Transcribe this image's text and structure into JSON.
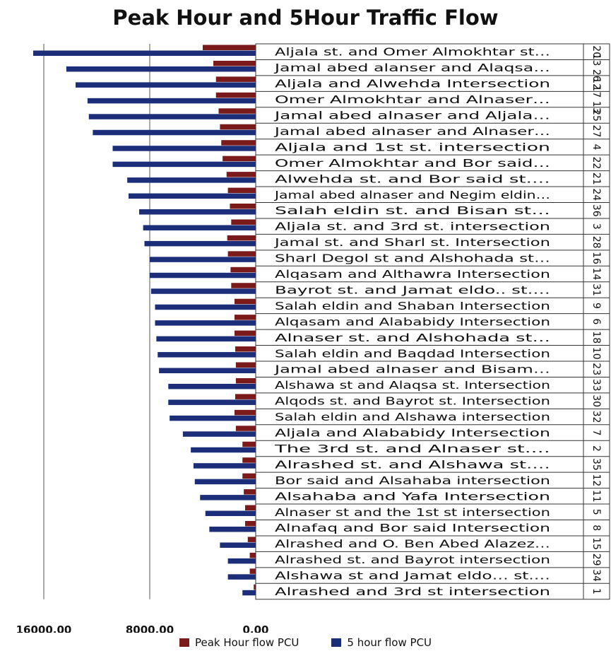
{
  "chart_data": {
    "type": "bar",
    "title": "Peak Hour and 5Hour Traffic Flow",
    "orientation": "horizontal",
    "x_axis_reversed": true,
    "xlim": [
      0,
      16800
    ],
    "x_ticks": [
      16000,
      8000,
      0
    ],
    "x_tick_labels": [
      "16000.00",
      "8000.00",
      "0.00"
    ],
    "grid": "vertical",
    "legend_position": "bottom",
    "series": [
      {
        "name": "Peak Hour flow  PCU",
        "color": "#7b1a1a",
        "values": [
          4000,
          3200,
          3000,
          3000,
          2800,
          2700,
          2600,
          2500,
          2200,
          2100,
          1950,
          1850,
          2150,
          2100,
          1900,
          1850,
          1600,
          1600,
          1600,
          1550,
          1500,
          1500,
          1550,
          1600,
          1500,
          1000,
          1000,
          1000,
          900,
          800,
          800,
          600,
          450,
          450,
          150
        ]
      },
      {
        "name": "5 hour flow PCU",
        "color": "#1c2e7a",
        "values": [
          16800,
          14300,
          13600,
          12700,
          12600,
          12300,
          10800,
          10800,
          9700,
          9600,
          8800,
          8500,
          8400,
          8000,
          8000,
          7900,
          7600,
          7600,
          7500,
          7400,
          7300,
          6600,
          6600,
          6500,
          5500,
          4900,
          4700,
          4600,
          4200,
          3800,
          3500,
          2700,
          2100,
          2100,
          1000
        ]
      }
    ],
    "rows": [
      {
        "label": "Aljala st. and Omer Almokhtar st…",
        "id": "20"
      },
      {
        "label": "Jamal abed alanser and Alaqsa…",
        "id": "13 26"
      },
      {
        "label": "Aljala and Alwehda Intersection",
        "id": "12"
      },
      {
        "label": "Omer Almokhtar and Alnaser…",
        "id": "17 13"
      },
      {
        "label": "Jamal abed alnaser and Aljala…",
        "id": "25"
      },
      {
        "label": "Jamal abed alnaser and Alnaser…",
        "id": "27"
      },
      {
        "label": "Aljala and 1st st. intersection",
        "id": "4"
      },
      {
        "label": "Omer Almokhtar and Bor said…",
        "id": "22"
      },
      {
        "label": "Alwehda st. and Bor said st.…",
        "id": "21"
      },
      {
        "label": "Jamal abed alnaser and Negim eldin…",
        "id": "24"
      },
      {
        "label": "Salah eldin st. and Bisan st…",
        "id": "36"
      },
      {
        "label": "Aljala st. and 3rd st. intersection",
        "id": "3"
      },
      {
        "label": "Jamal st. and Sharl st. Intersection",
        "id": "28"
      },
      {
        "label": "Sharl Degol st and Alshohada st…",
        "id": "16"
      },
      {
        "label": "Alqasam and Althawra Intersection",
        "id": "14"
      },
      {
        "label": "Bayrot st. and Jamat eldo.. st.…",
        "id": "31"
      },
      {
        "label": "Salah eldin and  Shaban Intersection",
        "id": "9"
      },
      {
        "label": "Alqasam and Alababidy Intersection",
        "id": "6"
      },
      {
        "label": "Alnaser st. and Alshohada st…",
        "id": "18"
      },
      {
        "label": "Salah eldin and Baqdad Intersection",
        "id": "10"
      },
      {
        "label": "Jamal abed alnaser and Bisam…",
        "id": "23"
      },
      {
        "label": "Alshawa st and Alaqsa st. Intersection",
        "id": "33"
      },
      {
        "label": "Alqods st. and Bayrot st. Intersection",
        "id": "30"
      },
      {
        "label": "Salah eldin and Alshawa intersection",
        "id": "32"
      },
      {
        "label": "Aljala and Alababidy Intersection",
        "id": "7"
      },
      {
        "label": "The 3rd st. and Alnaser st.…",
        "id": "2"
      },
      {
        "label": "Alrashed st. and Alshawa st.…",
        "id": "35"
      },
      {
        "label": "Bor said and Alsahaba intersection",
        "id": "12"
      },
      {
        "label": "Alsahaba and Yafa Intersection",
        "id": "11"
      },
      {
        "label": "Alnaser st and the 1st st intersection",
        "id": "5"
      },
      {
        "label": "Alnafaq and Bor said Intersection",
        "id": "8"
      },
      {
        "label": "Alrashed and O. Ben Abed Alazez…",
        "id": "15"
      },
      {
        "label": "Alrashed st. and Bayrot intersection",
        "id": "29"
      },
      {
        "label": "Alshawa st and Jamat eldo… st.…",
        "id": "34"
      },
      {
        "label": "Alrashed and 3rd st intersection",
        "id": "1"
      }
    ]
  }
}
